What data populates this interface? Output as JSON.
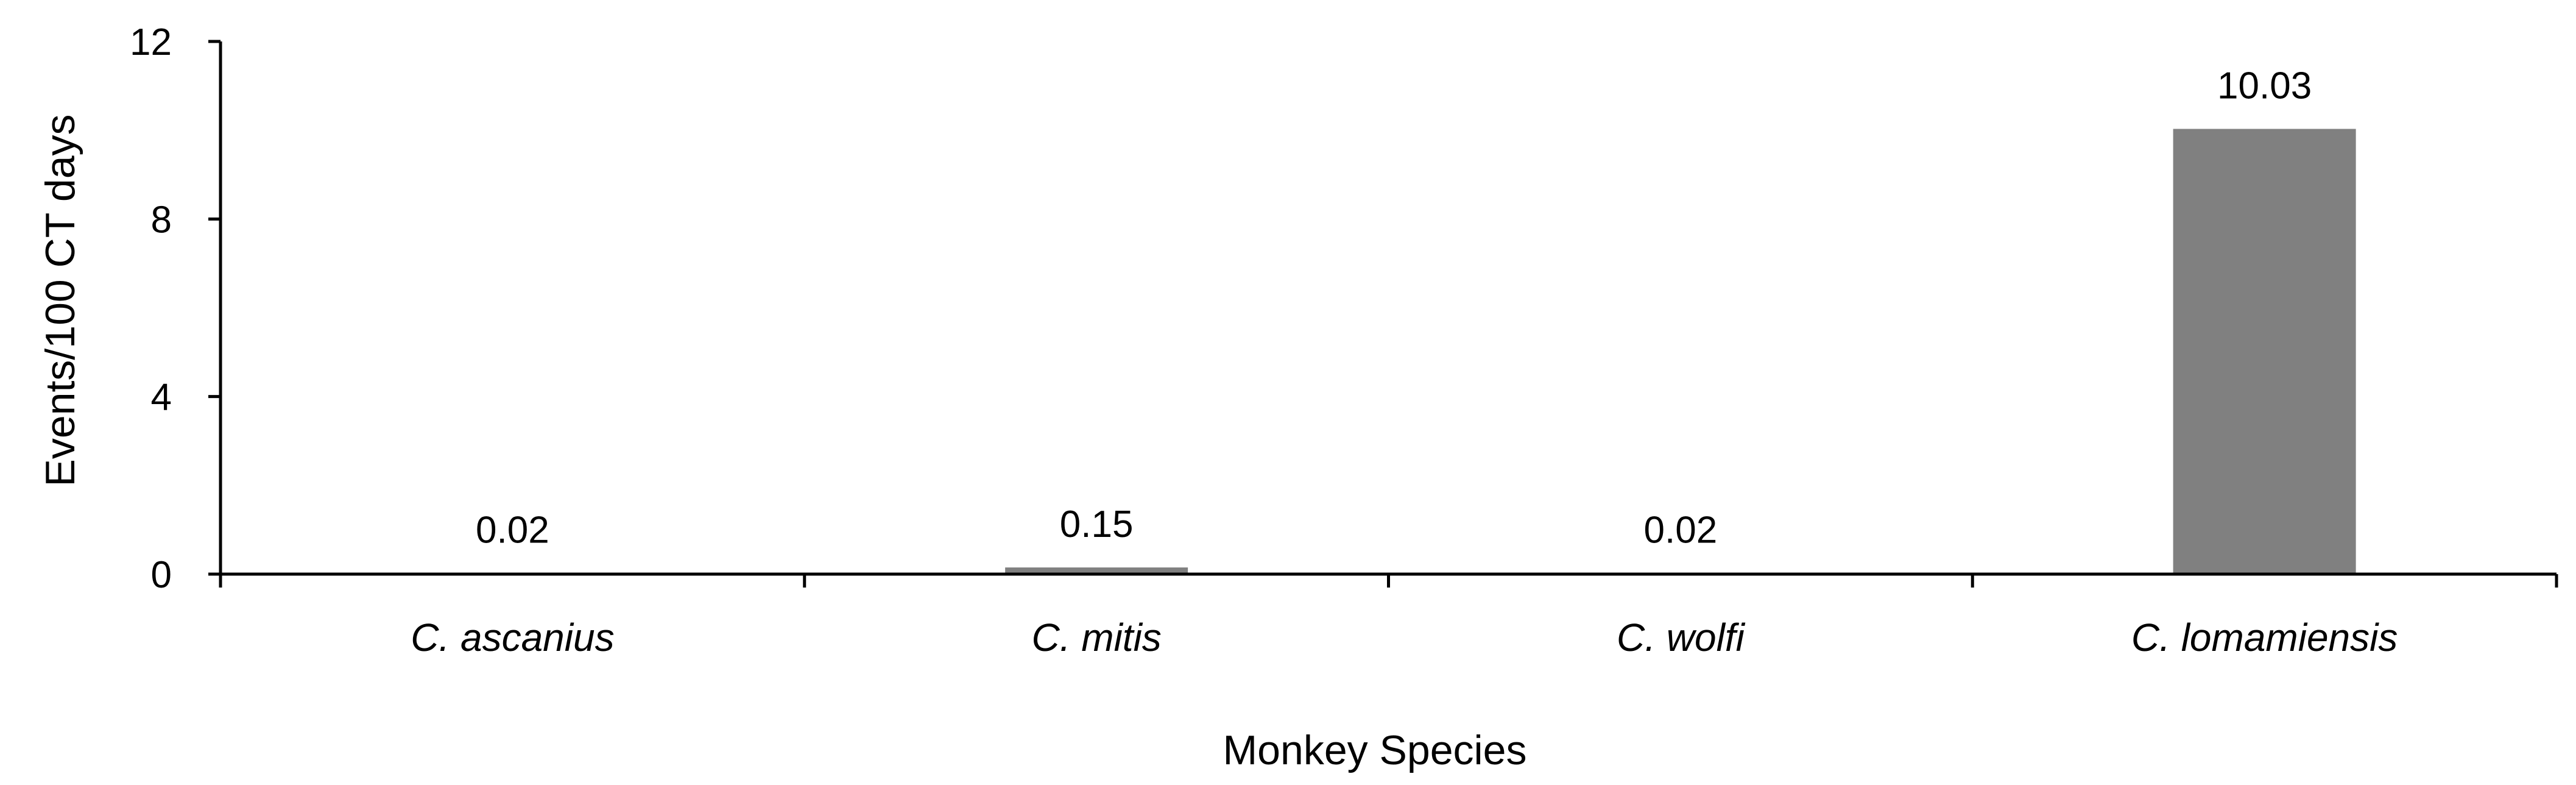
{
  "chart_data": {
    "type": "bar",
    "title": "",
    "xlabel": "Monkey Species",
    "ylabel": "Events/100 CT days",
    "categories": [
      "C. ascanius",
      "C. mitis",
      "C. wolfi",
      "C. lomamiensis"
    ],
    "values": [
      0.02,
      0.15,
      0.02,
      10.03
    ],
    "data_labels": [
      "0.02",
      "0.15",
      "0.02",
      "10.03"
    ],
    "ylim": [
      0,
      12
    ],
    "yticks": [
      0,
      4,
      8,
      12
    ],
    "ytick_labels": [
      "0",
      "4",
      "8",
      "12"
    ],
    "grid": false,
    "legend": "none",
    "bar_color": "#808080",
    "axis_color": "#000000"
  }
}
